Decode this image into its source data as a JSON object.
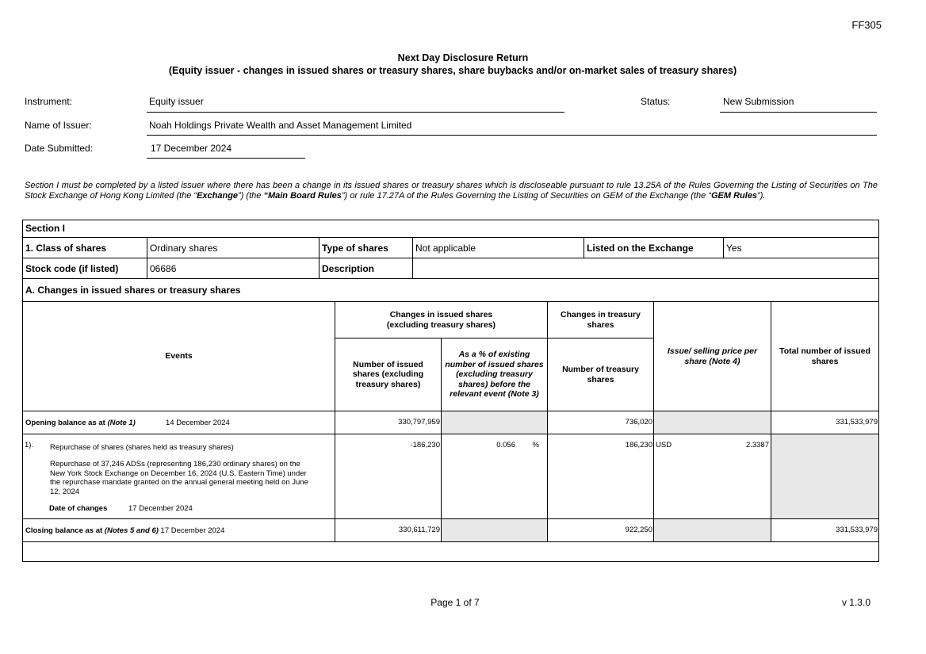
{
  "form_code": "FF305",
  "title": "Next Day Disclosure Return",
  "subtitle": "(Equity issuer - changes in issued shares or treasury shares, share buybacks and/or on-market sales of treasury shares)",
  "header": {
    "instrument_label": "Instrument:",
    "instrument_value": "Equity issuer",
    "status_label": "Status:",
    "status_value": "New Submission",
    "issuer_label": "Name of Issuer:",
    "issuer_value": "Noah Holdings Private Wealth and Asset Management Limited",
    "date_label": "Date Submitted:",
    "date_value": "17 December 2024"
  },
  "intro": {
    "p1": "Section I must be completed by a listed issuer where there has been a change in its issued shares or treasury shares which is discloseable pursuant to rule 13.25A of the Rules Governing the Listing of Securities on The Stock Exchange of Hong Kong Limited (the “",
    "exchange": "Exchange",
    "p2": "”) (the ",
    "mbr": "“Main Board Rules",
    "p3": "”) or rule 17.27A of the Rules Governing the Listing of Securities on GEM of the Exchange (the “",
    "gem": "GEM Rules",
    "p4": "”)."
  },
  "section": {
    "title": "Section I",
    "class_label": "1. Class of shares",
    "class_value": "Ordinary shares",
    "type_label": "Type of shares",
    "type_value": "Not applicable",
    "listed_label": "Listed on the Exchange",
    "listed_value": "Yes",
    "stock_label": "Stock code (if listed)",
    "stock_value": "06686",
    "desc_label": "Description",
    "desc_value": "",
    "a_title": "A. Changes in issued shares or treasury shares"
  },
  "table": {
    "h_events": "Events",
    "h_issued_group": "Changes in issued shares (excluding treasury shares)",
    "h_treasury_group": "Changes in treasury shares",
    "h_num_issued": "Number of issued shares (excluding treasury shares)",
    "h_pct": "As a % of existing number of issued shares (excluding treasury shares) before the relevant event (Note 3)",
    "h_num_treasury": "Number of treasury shares",
    "h_price": "Issue/ selling price per share (Note 4)",
    "h_total": "Total number of issued shares",
    "opening": {
      "label": "Opening balance as at ",
      "note": "(Note 1)",
      "date": "14 December 2024",
      "issued": "330,797,959",
      "treasury": "736,020",
      "total": "331,533,979"
    },
    "event": {
      "no": "1).",
      "title": "Repurchase of shares (shares held as treasury shares)",
      "desc": "Repurchase of 37,246 ADSs (representing 186,230 ordinary shares) on the New York Stock Exchange on December 16, 2024 (U.S. Eastern Time) under the repurchase mandate granted on the annual general meeting held on June 12, 2024",
      "date_label": "Date of changes",
      "date": "17 December 2024",
      "issued": "-186,230",
      "pct": "0.056",
      "pct_unit": "%",
      "treasury": "186,230",
      "currency": "USD",
      "price": "2.3387"
    },
    "closing": {
      "label": "Closing balance as at ",
      "note": "(Notes 5 and 6)",
      "date": "17 December 2024",
      "issued": "330,611,729",
      "treasury": "922,250",
      "total": "331,533,979"
    }
  },
  "footer": {
    "page": "Page 1 of 7",
    "version": "v 1.3.0"
  }
}
